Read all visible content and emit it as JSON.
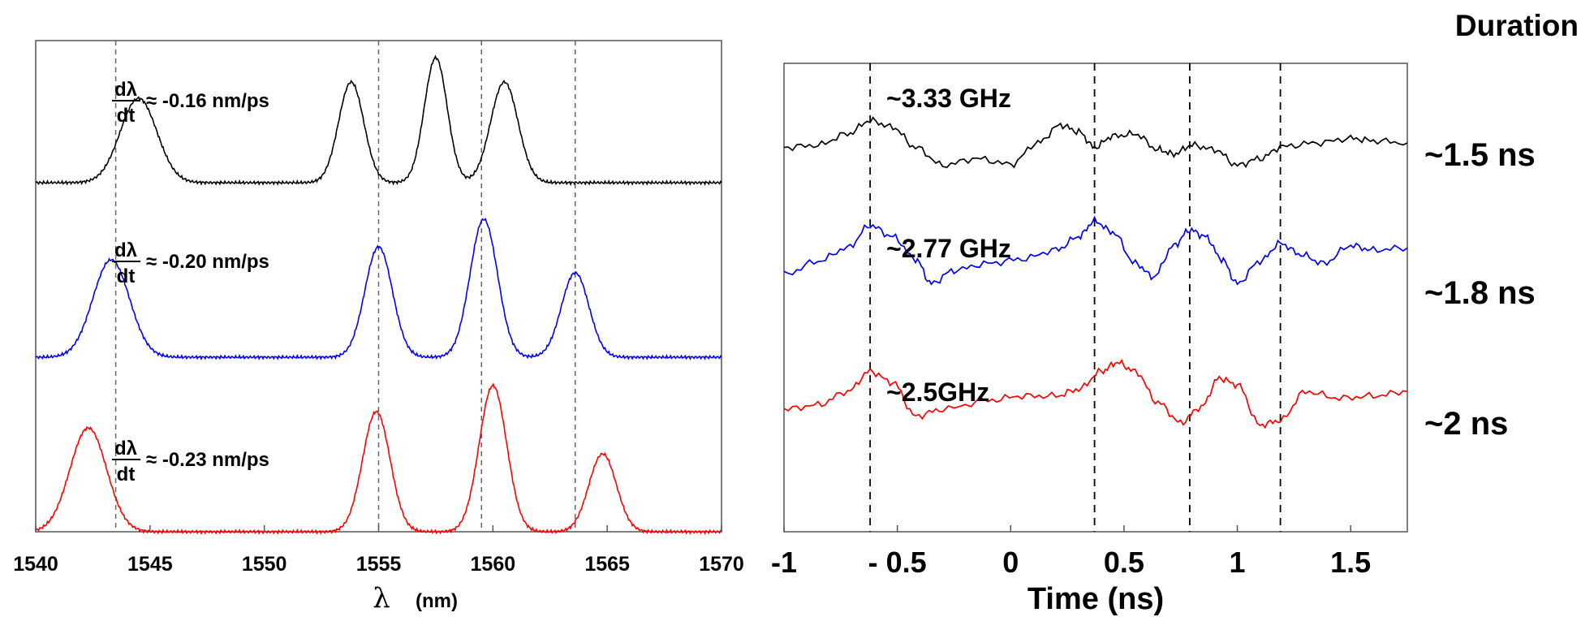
{
  "chart_data": [
    {
      "type": "line",
      "xlabel_symbol": "λ",
      "xlabel_unit": "(nm)",
      "ylabel": "",
      "xlim": [
        1540,
        1570
      ],
      "x_ticks": [
        "1540",
        "1545",
        "1550",
        "1555",
        "1560",
        "1565",
        "1570"
      ],
      "reference_lines_x": [
        1543.5,
        1555,
        1559.5,
        1563.6
      ],
      "annotations": [
        {
          "frac_num": "dλ",
          "frac_den": "dt",
          "text": "≈ -0.16 nm/ps"
        },
        {
          "frac_num": "dλ",
          "frac_den": "dt",
          "text": "≈ -0.20 nm/ps"
        },
        {
          "frac_num": "dλ",
          "frac_den": "dt",
          "text": "≈ -0.23 nm/ps"
        }
      ],
      "series": [
        {
          "color": "#000000",
          "baseline": 0.0,
          "peaks": [
            [
              1544.5,
              0.52,
              0.8
            ],
            [
              1553.8,
              0.62,
              0.55
            ],
            [
              1557.5,
              0.77,
              0.5
            ],
            [
              1560.5,
              0.62,
              0.6
            ]
          ]
        },
        {
          "color": "#0000ff",
          "baseline": 0.0,
          "peaks": [
            [
              1543.3,
              0.6,
              0.8
            ],
            [
              1555.0,
              0.68,
              0.6
            ],
            [
              1559.6,
              0.85,
              0.6
            ],
            [
              1563.6,
              0.52,
              0.6
            ]
          ]
        },
        {
          "color": "#ff0000",
          "baseline": 0.0,
          "peaks": [
            [
              1542.3,
              0.64,
              0.8
            ],
            [
              1554.9,
              0.74,
              0.6
            ],
            [
              1560.0,
              0.9,
              0.6
            ],
            [
              1564.8,
              0.48,
              0.6
            ]
          ]
        }
      ]
    },
    {
      "type": "line",
      "xlabel": "Time (ns)",
      "ylabel": "",
      "xlim": [
        -1,
        1.75
      ],
      "x_ticks": [
        "-1",
        "- 0.5",
        "0",
        "0.5",
        "1",
        "1.5"
      ],
      "x_tick_values": [
        -1,
        -0.5,
        0,
        0.5,
        1,
        1.5
      ],
      "reference_lines_x": [
        -0.62,
        0.37,
        0.79,
        1.19
      ],
      "series": [
        {
          "color": "#000000",
          "label": "~3.33 GHz",
          "duration": "~1.5 ns",
          "x": [
            -1.0,
            -0.85,
            -0.72,
            -0.62,
            -0.52,
            -0.42,
            -0.3,
            -0.15,
            0.0,
            0.12,
            0.22,
            0.3,
            0.37,
            0.45,
            0.55,
            0.65,
            0.72,
            0.8,
            0.9,
            1.0,
            1.1,
            1.2,
            1.35,
            1.5,
            1.6,
            1.75
          ],
          "y": [
            0.1,
            0.15,
            0.4,
            0.7,
            0.55,
            0.1,
            -0.3,
            -0.15,
            -0.28,
            0.2,
            0.6,
            0.45,
            0.1,
            0.35,
            0.4,
            0.05,
            -0.05,
            0.15,
            0.05,
            -0.3,
            -0.15,
            0.12,
            0.2,
            0.3,
            0.25,
            0.2
          ]
        },
        {
          "color": "#0000ff",
          "label": "~2.77 GHz",
          "duration": "~1.8 ns",
          "x": [
            -1.0,
            -0.85,
            -0.72,
            -0.62,
            -0.52,
            -0.42,
            -0.35,
            -0.25,
            -0.1,
            0.05,
            0.2,
            0.3,
            0.37,
            0.45,
            0.55,
            0.63,
            0.72,
            0.79,
            0.86,
            0.93,
            1.0,
            1.1,
            1.19,
            1.28,
            1.38,
            1.5,
            1.6,
            1.75
          ],
          "y": [
            -0.55,
            -0.25,
            0.05,
            0.55,
            0.3,
            -0.2,
            -0.75,
            -0.45,
            -0.3,
            -0.2,
            0.0,
            0.3,
            0.65,
            0.4,
            -0.3,
            -0.6,
            0.1,
            0.45,
            0.3,
            -0.2,
            -0.75,
            -0.25,
            0.15,
            -0.1,
            -0.3,
            0.1,
            0.0,
            0.05
          ]
        },
        {
          "color": "#ff0000",
          "label": "~2.5GHz",
          "duration": "~2 ns",
          "x": [
            -1.0,
            -0.85,
            -0.72,
            -0.62,
            -0.52,
            -0.42,
            -0.3,
            -0.1,
            0.05,
            0.2,
            0.3,
            0.4,
            0.47,
            0.55,
            0.65,
            0.75,
            0.84,
            0.92,
            1.0,
            1.1,
            1.19,
            1.3,
            1.45,
            1.6,
            1.75
          ],
          "y": [
            -0.35,
            -0.25,
            0.05,
            0.5,
            0.25,
            -0.5,
            -0.35,
            -0.15,
            -0.05,
            -0.05,
            0.1,
            0.5,
            0.7,
            0.5,
            -0.2,
            -0.65,
            -0.3,
            0.35,
            0.2,
            -0.7,
            -0.6,
            0.05,
            -0.1,
            -0.05,
            0.05
          ]
        }
      ]
    }
  ],
  "right_header": "Duration"
}
